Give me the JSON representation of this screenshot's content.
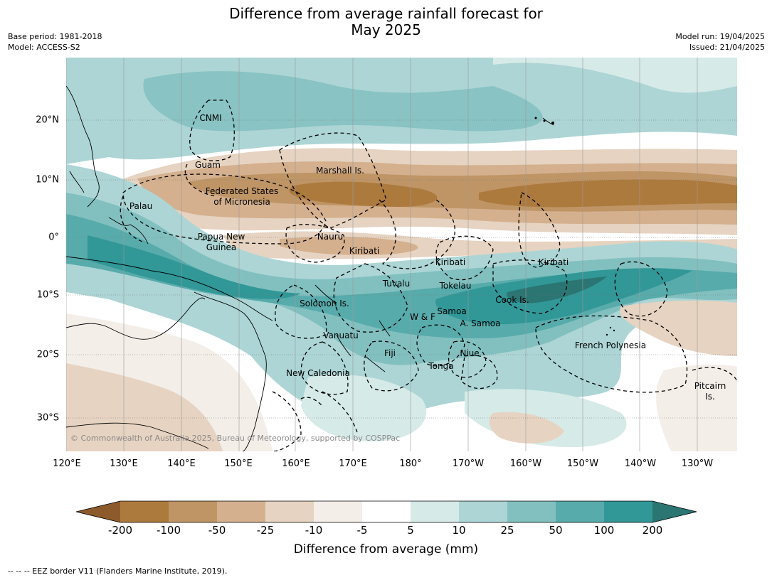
{
  "title_line1": "Difference from average rainfall forecast for",
  "title_line2": "May 2025",
  "base_period": "Base period: 1981-2018",
  "model": "Model: ACCESS-S2",
  "model_run": "Model run: 19/04/2025",
  "issued": "Issued: 21/04/2025",
  "copyright": "© Commonwealth of Australia 2025, Bureau of Meteorology, supported by COSPPac",
  "footnote": "--  --  -- EEZ border V11 (Flanders Marine Institute, 2019).",
  "lat_labels": [
    "20°N",
    "10°N",
    "0°",
    "10°S",
    "20°S",
    "30°S"
  ],
  "lon_labels": [
    "120°E",
    "130°E",
    "140°E",
    "150°E",
    "160°E",
    "170°E",
    "180°",
    "170°W",
    "160°W",
    "150°W",
    "140°W",
    "130°W"
  ],
  "colorbar": {
    "label": "Difference from average (mm)",
    "ticks": [
      "-200",
      "-100",
      "-50",
      "-25",
      "-10",
      "-5",
      "5",
      "10",
      "25",
      "50",
      "100",
      "200"
    ],
    "colors": {
      "below_-200": "#8d5a2b",
      "-200_-100": "#ad7a3e",
      "-100_-50": "#bf9566",
      "-50_-25": "#d4b08e",
      "-25_-10": "#e6d3c1",
      "-10_-5": "#f3eee8",
      "-5_5": "#ffffff",
      "5_10": "#d6eae8",
      "10_25": "#add5d5",
      "25_50": "#82c0c0",
      "50_100": "#58abab",
      "100_200": "#319797",
      "above_200": "#2b7573"
    }
  },
  "places": [
    {
      "name": "CNMI"
    },
    {
      "name": "Guam"
    },
    {
      "name": "Marshall Is."
    },
    {
      "name": "Federated States"
    },
    {
      "name": "of Micronesia"
    },
    {
      "name": "Palau"
    },
    {
      "name": "Papua New"
    },
    {
      "name": "Guinea"
    },
    {
      "name": "Nauru"
    },
    {
      "name": "Kiribati"
    },
    {
      "name": "Kiribati"
    },
    {
      "name": "Kiribati"
    },
    {
      "name": "Tuvalu"
    },
    {
      "name": "Tokelau"
    },
    {
      "name": "Cook Is."
    },
    {
      "name": "Solomon Is."
    },
    {
      "name": "Samoa"
    },
    {
      "name": "W & F"
    },
    {
      "name": "A. Samoa"
    },
    {
      "name": "Vanuatu"
    },
    {
      "name": "Fiji"
    },
    {
      "name": "Niue"
    },
    {
      "name": "French Polynesia"
    },
    {
      "name": "Tonga"
    },
    {
      "name": "New Caledonia"
    },
    {
      "name": "Pitcairn"
    },
    {
      "name": "Is."
    }
  ]
}
